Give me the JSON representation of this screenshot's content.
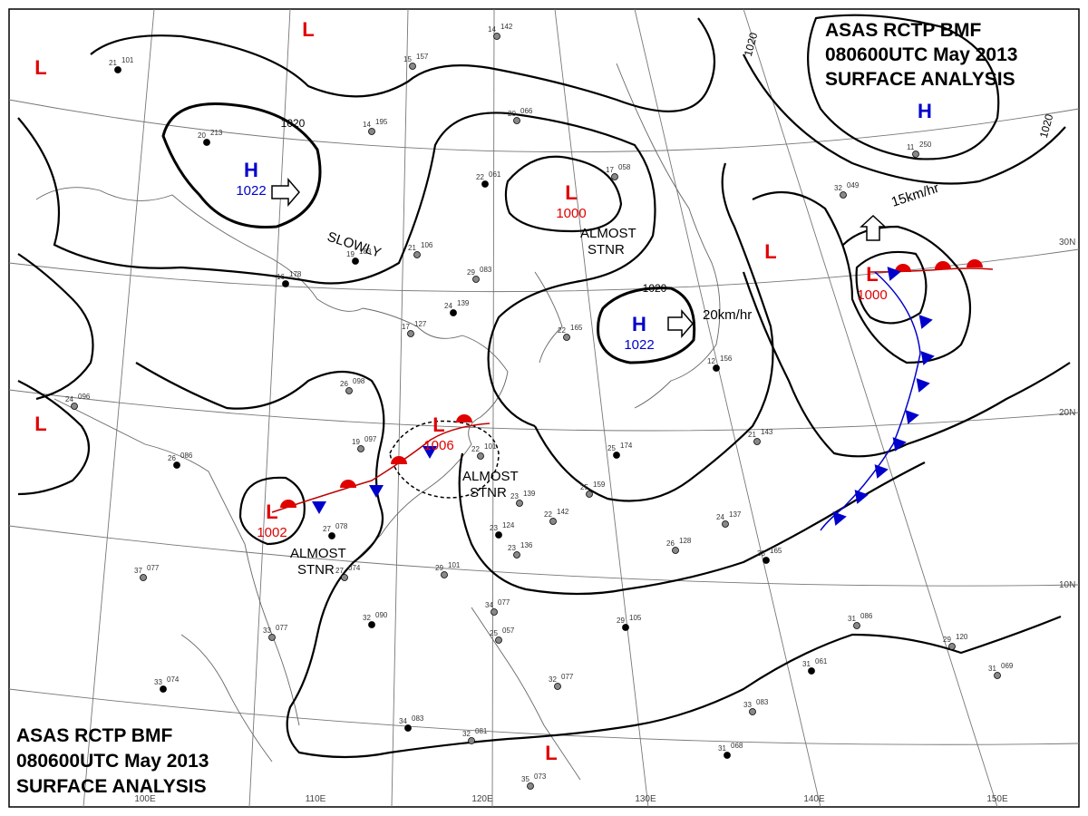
{
  "header_top": {
    "line1": "ASAS    RCTP    BMF",
    "line2": "080600UTC    May    2013",
    "line3": "SURFACE  ANALYSIS"
  },
  "header_bottom": {
    "line1": "ASAS     RCTP    BMF",
    "line2": "080600UTC     May     2013",
    "line3": "SURFACE  ANALYSIS"
  },
  "colors": {
    "low": "#e00000",
    "high": "#0000cc",
    "warm_front": "#e00000",
    "cold_front": "#0000cc",
    "isobar": "#000000",
    "graticule": "#777777",
    "coast": "#666666"
  },
  "longitudes": [
    "100E",
    "110E",
    "120E",
    "130E",
    "140E",
    "150E"
  ],
  "latitudes": [
    "30N",
    "20N",
    "10N"
  ],
  "isobar_labels": [
    "1020",
    "1020",
    "1020",
    "1020"
  ],
  "pressure_centers": [
    {
      "type": "L",
      "value": ""
    },
    {
      "type": "L",
      "value": ""
    },
    {
      "type": "L",
      "value": ""
    },
    {
      "type": "H",
      "value": "1022"
    },
    {
      "type": "L",
      "value": "1000"
    },
    {
      "type": "H",
      "value": "1022"
    },
    {
      "type": "L",
      "value": ""
    },
    {
      "type": "L",
      "value": "1000"
    },
    {
      "type": "H",
      "value": ""
    },
    {
      "type": "L",
      "value": "1006"
    },
    {
      "type": "L",
      "value": "1002"
    },
    {
      "type": "L",
      "value": ""
    }
  ],
  "motion_labels": [
    "SLOWLY",
    "ALMOST STNR",
    "20km/hr",
    "15km/hr",
    "ALMOST STNR",
    "ALMOST STNR"
  ],
  "stations": [
    {
      "t": "21",
      "p": "101"
    },
    {
      "t": "15",
      "p": "157"
    },
    {
      "t": "14",
      "p": "142"
    },
    {
      "t": "20",
      "p": "213"
    },
    {
      "t": "14",
      "p": "195"
    },
    {
      "t": "20",
      "p": "066"
    },
    {
      "t": "22",
      "p": "061"
    },
    {
      "t": "17",
      "p": "058"
    },
    {
      "t": "11",
      "p": "250"
    },
    {
      "t": "16",
      "p": "178"
    },
    {
      "t": "21",
      "p": "106"
    },
    {
      "t": "29",
      "p": "083"
    },
    {
      "t": "24",
      "p": "139"
    },
    {
      "t": "17",
      "p": "127"
    },
    {
      "t": "26",
      "p": "098"
    },
    {
      "t": "26",
      "p": "086"
    },
    {
      "t": "19",
      "p": "097"
    },
    {
      "t": "22",
      "p": "101"
    },
    {
      "t": "25",
      "p": "174"
    },
    {
      "t": "25",
      "p": "159"
    },
    {
      "t": "23",
      "p": "139"
    },
    {
      "t": "23",
      "p": "124"
    },
    {
      "t": "23",
      "p": "136"
    },
    {
      "t": "22",
      "p": "142"
    },
    {
      "t": "27",
      "p": "078"
    },
    {
      "t": "27",
      "p": "074"
    },
    {
      "t": "29",
      "p": "101"
    },
    {
      "t": "32",
      "p": "090"
    },
    {
      "t": "37",
      "p": "077"
    },
    {
      "t": "33",
      "p": "077"
    },
    {
      "t": "33",
      "p": "074"
    },
    {
      "t": "34",
      "p": "077"
    },
    {
      "t": "25",
      "p": "057"
    },
    {
      "t": "29",
      "p": "105"
    },
    {
      "t": "24",
      "p": "137"
    },
    {
      "t": "26",
      "p": "128"
    },
    {
      "t": "33",
      "p": "165"
    },
    {
      "t": "31",
      "p": "086"
    },
    {
      "t": "29",
      "p": "120"
    },
    {
      "t": "31",
      "p": "061"
    },
    {
      "t": "31",
      "p": "069"
    },
    {
      "t": "33",
      "p": "083"
    },
    {
      "t": "31",
      "p": "068"
    },
    {
      "t": "35",
      "p": "073"
    },
    {
      "t": "32",
      "p": "081"
    },
    {
      "t": "34",
      "p": "083"
    },
    {
      "t": "32",
      "p": "077"
    },
    {
      "t": "21",
      "p": "143"
    },
    {
      "t": "12",
      "p": "156"
    },
    {
      "t": "32",
      "p": "049"
    },
    {
      "t": "24",
      "p": "096"
    },
    {
      "t": "19",
      "p": "183"
    },
    {
      "t": "22",
      "p": "165"
    }
  ]
}
